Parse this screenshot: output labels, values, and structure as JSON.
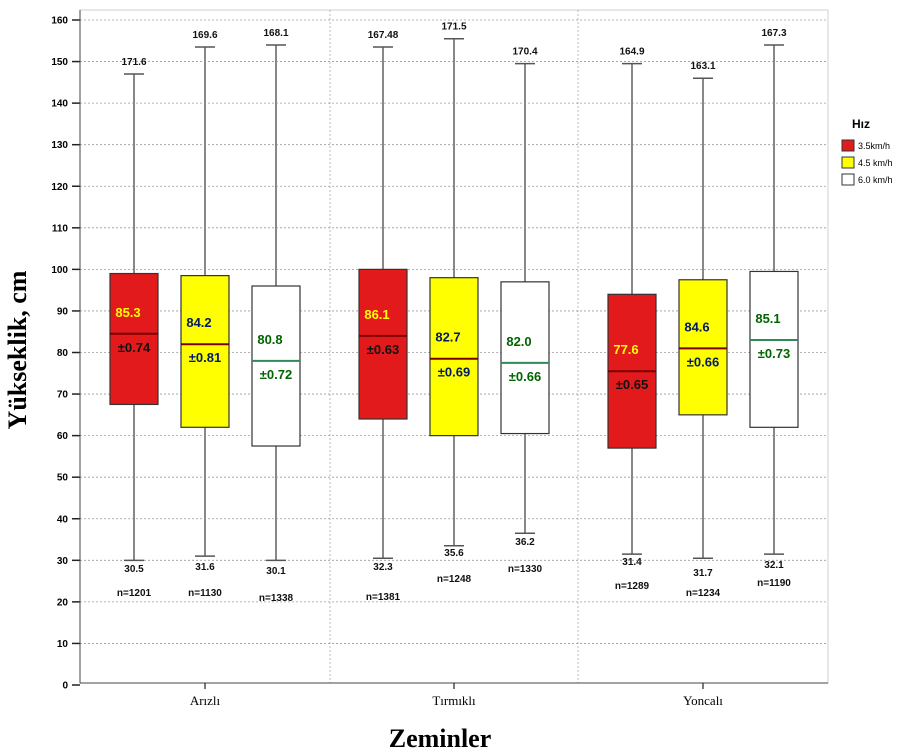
{
  "chart_data": {
    "type": "boxplot",
    "xlabel": "Zeminler",
    "ylabel": "Yükseklik, cm",
    "ylim": [
      0,
      160
    ],
    "yticks": [
      0,
      10,
      20,
      30,
      40,
      50,
      60,
      70,
      80,
      90,
      100,
      110,
      120,
      130,
      140,
      150,
      160
    ],
    "grid": true,
    "legend": {
      "title": "Hız",
      "placement": "right",
      "entries": [
        {
          "label": "3.5km/h",
          "color": "#e31a1c"
        },
        {
          "label": "4.5 km/h",
          "color": "#ffff00"
        },
        {
          "label": "6.0 km/h",
          "color": "#ffffff"
        }
      ]
    },
    "groups": [
      {
        "category": "Arızlı",
        "boxes": [
          {
            "series": "3.5km/h",
            "whisker_low": 30,
            "q1": 67.5,
            "median": 84.5,
            "q3": 99,
            "whisker_high": 147,
            "max_label": "171.6",
            "mean_label": "85.3",
            "se_label": "±0.74",
            "min_label": "30.5",
            "n_label": "n=1201"
          },
          {
            "series": "4.5 km/h",
            "whisker_low": 31,
            "q1": 62,
            "median": 82,
            "q3": 98.5,
            "whisker_high": 153.5,
            "max_label": "169.6",
            "mean_label": "84.2",
            "se_label": "±0.81",
            "min_label": "31.6",
            "n_label": "n=1130"
          },
          {
            "series": "6.0 km/h",
            "whisker_low": 30,
            "q1": 57.5,
            "median": 78,
            "q3": 96,
            "whisker_high": 154,
            "max_label": "168.1",
            "mean_label": "80.8",
            "se_label": "±0.72",
            "min_label": "30.1",
            "n_label": "n=1338"
          }
        ]
      },
      {
        "category": "Tırmıklı",
        "boxes": [
          {
            "series": "3.5km/h",
            "whisker_low": 30.5,
            "q1": 64,
            "median": 84,
            "q3": 100,
            "whisker_high": 153.5,
            "max_label": "167.48",
            "mean_label": "86.1",
            "se_label": "±0.63",
            "min_label": "32.3",
            "n_label": "n=1381"
          },
          {
            "series": "4.5 km/h",
            "whisker_low": 33.5,
            "q1": 60,
            "median": 78.5,
            "q3": 98,
            "whisker_high": 155.5,
            "max_label": "171.5",
            "mean_label": "82.7",
            "se_label": "±0.69",
            "min_label": "35.6",
            "n_label": "n=1248"
          },
          {
            "series": "6.0 km/h",
            "whisker_low": 36.5,
            "q1": 60.5,
            "median": 77.5,
            "q3": 97,
            "whisker_high": 149.5,
            "max_label": "170.4",
            "mean_label": "82.0",
            "se_label": "±0.66",
            "min_label": "36.2",
            "n_label": "n=1330"
          }
        ]
      },
      {
        "category": "Yoncalı",
        "boxes": [
          {
            "series": "3.5km/h",
            "whisker_low": 31.5,
            "q1": 57,
            "median": 75.5,
            "q3": 94,
            "whisker_high": 149.5,
            "max_label": "164.9",
            "mean_label": "77.6",
            "se_label": "±0.65",
            "min_label": "31.4",
            "n_label": "n=1289"
          },
          {
            "series": "4.5 km/h",
            "whisker_low": 30.5,
            "q1": 65,
            "median": 81,
            "q3": 97.5,
            "whisker_high": 146,
            "max_label": "163.1",
            "mean_label": "84.6",
            "se_label": "±0.66",
            "min_label": "31.7",
            "n_label": "n=1234"
          },
          {
            "series": "6.0 km/h",
            "whisker_low": 31.5,
            "q1": 62,
            "median": 83,
            "q3": 99.5,
            "whisker_high": 154,
            "max_label": "167.3",
            "mean_label": "85.1",
            "se_label": "±0.73",
            "min_label": "32.1",
            "n_label": "n=1190"
          }
        ]
      }
    ],
    "colors": {
      "box_stroke": "#333333",
      "whisker": "#888888",
      "median_dark": "#7a0000",
      "median_light": "#2e8b57",
      "mean_text_on_red": "#ffff00",
      "se_text_on_red": "#111111",
      "mean_text_on_yellow": "#001a66",
      "mean_text_on_white": "#006400"
    }
  }
}
